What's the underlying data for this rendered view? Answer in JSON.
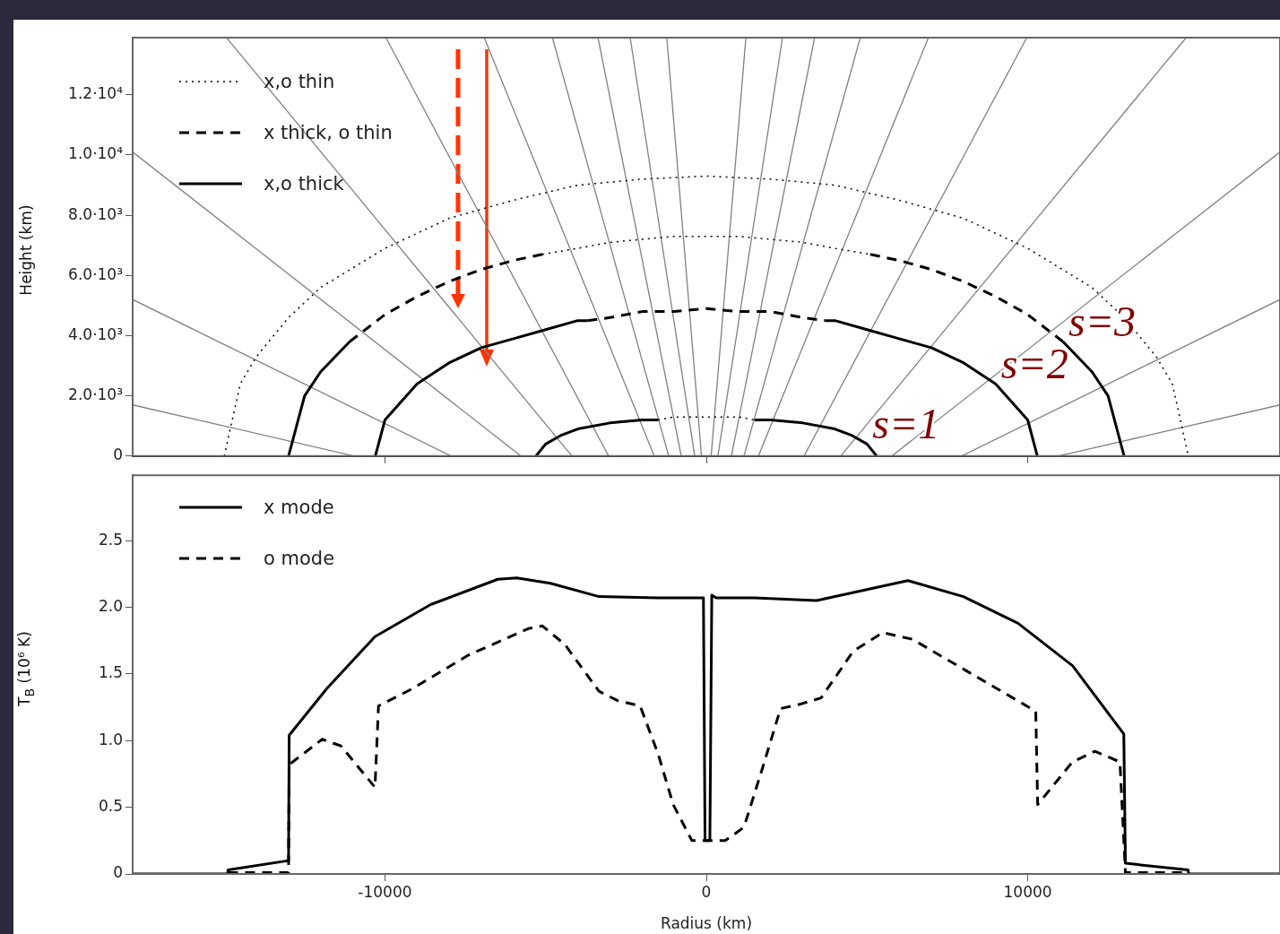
{
  "chart_data": [
    {
      "type": "line",
      "ylabel": "Height (km)",
      "xlim": [
        -17850,
        17850
      ],
      "ylim": [
        0,
        13900
      ],
      "xticks": [
        -10000,
        0,
        10000
      ],
      "yticks": [
        0,
        {
          "value": 2000,
          "label": "2.0·10³"
        },
        {
          "value": 4000,
          "label": "4.0·10³"
        },
        {
          "value": 6000,
          "label": "6.0·10³"
        },
        {
          "value": 8000,
          "label": "8.0·10³"
        },
        {
          "value": 10000,
          "label": "1.0·10⁴"
        },
        {
          "value": 12000,
          "label": "1.2·10⁴"
        }
      ],
      "tick_labels": "y",
      "legend": "top left",
      "grid": false,
      "annotations": [
        {
          "text": "s=1",
          "x": 5000,
          "y": 400
        },
        {
          "text": "s=2",
          "x": 9000,
          "y": 2400
        },
        {
          "text": "s=3",
          "x": 11100,
          "y": 3800
        }
      ],
      "series": [
        {
          "name": "x,o thin",
          "color": "#000000",
          "line_style": "dotted",
          "x": [
            -15000,
            -14500,
            -14000,
            -13000,
            -12000,
            -10000,
            -8000,
            -6000,
            -4000,
            -2000,
            0,
            2000,
            4000,
            6000,
            8000,
            10000,
            12000,
            13000,
            14000,
            14500,
            15000
          ],
          "values": [
            0,
            2400,
            3300,
            4600,
            5600,
            6900,
            7900,
            8500,
            9000,
            9200,
            9300,
            9200,
            9000,
            8500,
            7900,
            6900,
            5600,
            4600,
            3300,
            2400,
            0
          ]
        },
        {
          "color": "#000000",
          "line_style": "dotted",
          "x": [
            -5100,
            -4000,
            -3000,
            -2000,
            -1000,
            0,
            1000,
            2000,
            3000,
            4000,
            5100
          ],
          "values": [
            6700,
            6900,
            7100,
            7200,
            7300,
            7300,
            7300,
            7200,
            7100,
            6900,
            6700
          ]
        },
        {
          "color": "#000000",
          "line_style": "dotted",
          "x": [
            -1500,
            -1000,
            0,
            1000,
            1500
          ],
          "values": [
            1200,
            1300,
            1300,
            1300,
            1200
          ]
        },
        {
          "name": "x thick, o thin",
          "color": "#000000",
          "line_style": "dashed",
          "x": [
            -11100,
            -10000,
            -9000,
            -8000,
            -7000,
            -6000,
            -5100
          ],
          "values": [
            3800,
            4700,
            5300,
            5800,
            6200,
            6500,
            6700
          ]
        },
        {
          "color": "#000000",
          "line_style": "dashed",
          "x": [
            5100,
            6000,
            7000,
            8000,
            9000,
            10000,
            11100
          ],
          "values": [
            6700,
            6500,
            6200,
            5800,
            5300,
            4700,
            3800
          ]
        },
        {
          "color": "#000000",
          "line_style": "dashed",
          "x": [
            -3700,
            -3000,
            -2000,
            -1000,
            0,
            1000,
            2000,
            3000,
            3700
          ],
          "values": [
            4500,
            4600,
            4800,
            4800,
            4900,
            4800,
            4800,
            4600,
            4500
          ]
        },
        {
          "name": "x,o thick",
          "color": "#000000",
          "line_style": "solid",
          "x": [
            -13000,
            -12500,
            -12000,
            -11100
          ],
          "values": [
            0,
            2000,
            2800,
            3800
          ]
        },
        {
          "color": "#000000",
          "line_style": "solid",
          "x": [
            11100,
            12000,
            12500,
            13000
          ],
          "values": [
            3800,
            2800,
            2000,
            0
          ]
        },
        {
          "color": "#000000",
          "line_style": "solid",
          "x": [
            -10300,
            -10000,
            -9000,
            -8000,
            -7000,
            -6000,
            -5000,
            -4000,
            -3700
          ],
          "values": [
            0,
            1200,
            2400,
            3100,
            3600,
            3900,
            4200,
            4500,
            4500
          ]
        },
        {
          "color": "#000000",
          "line_style": "solid",
          "x": [
            3700,
            4000,
            5000,
            6000,
            7000,
            8000,
            9000,
            10000,
            10300
          ],
          "values": [
            4500,
            4500,
            4200,
            3900,
            3600,
            3100,
            2400,
            1200,
            0
          ]
        },
        {
          "color": "#000000",
          "line_style": "solid",
          "x": [
            -5300,
            -5000,
            -4500,
            -4000,
            -3000,
            -2000,
            -1500
          ],
          "values": [
            0,
            400,
            700,
            900,
            1100,
            1200,
            1200
          ]
        },
        {
          "color": "#000000",
          "line_style": "solid",
          "x": [
            1500,
            2000,
            3000,
            4000,
            4500,
            5000,
            5300
          ],
          "values": [
            1200,
            1200,
            1100,
            900,
            700,
            400,
            0
          ]
        },
        {
          "color": "#808080",
          "line_style": "solid",
          "x": [
            -14930,
            -4180
          ],
          "values": [
            13900,
            0
          ]
        },
        {
          "color": "#808080",
          "line_style": "solid",
          "x": [
            -9970,
            -3040
          ],
          "values": [
            13900,
            0
          ]
        },
        {
          "color": "#808080",
          "line_style": "solid",
          "x": [
            -6910,
            -1620
          ],
          "values": [
            13900,
            0
          ]
        },
        {
          "color": "#808080",
          "line_style": "solid",
          "x": [
            -4790,
            -1170
          ],
          "values": [
            13900,
            0
          ]
        },
        {
          "color": "#808080",
          "line_style": "solid",
          "x": [
            -3370,
            -780
          ],
          "values": [
            13900,
            0
          ]
        },
        {
          "color": "#808080",
          "line_style": "solid",
          "x": [
            -2370,
            -360
          ],
          "values": [
            13900,
            0
          ]
        },
        {
          "color": "#808080",
          "line_style": "solid",
          "x": [
            -1230,
            -150
          ],
          "values": [
            13900,
            0
          ]
        },
        {
          "color": "#808080",
          "line_style": "solid",
          "x": [
            1230,
            150
          ],
          "values": [
            13900,
            0
          ]
        },
        {
          "color": "#808080",
          "line_style": "solid",
          "x": [
            2370,
            360
          ],
          "values": [
            13900,
            0
          ]
        },
        {
          "color": "#808080",
          "line_style": "solid",
          "x": [
            3370,
            780
          ],
          "values": [
            13900,
            0
          ]
        },
        {
          "color": "#808080",
          "line_style": "solid",
          "x": [
            4790,
            1170
          ],
          "values": [
            13900,
            0
          ]
        },
        {
          "color": "#808080",
          "line_style": "solid",
          "x": [
            6910,
            1620
          ],
          "values": [
            13900,
            0
          ]
        },
        {
          "color": "#808080",
          "line_style": "solid",
          "x": [
            9970,
            3040
          ],
          "values": [
            13900,
            0
          ]
        },
        {
          "color": "#808080",
          "line_style": "solid",
          "x": [
            14930,
            4180
          ],
          "values": [
            13900,
            0
          ]
        },
        {
          "color": "#808080",
          "line_style": "solid",
          "x": [
            -17850,
            -5770
          ],
          "values": [
            10100,
            0
          ]
        },
        {
          "color": "#808080",
          "line_style": "solid",
          "x": [
            -17850,
            -7940
          ],
          "values": [
            5200,
            0
          ]
        },
        {
          "color": "#808080",
          "line_style": "solid",
          "x": [
            -17850,
            -10950
          ],
          "values": [
            1700,
            0
          ]
        },
        {
          "color": "#808080",
          "line_style": "solid",
          "x": [
            17850,
            5770
          ],
          "values": [
            10100,
            0
          ]
        },
        {
          "color": "#808080",
          "line_style": "solid",
          "x": [
            17850,
            7940
          ],
          "values": [
            5200,
            0
          ]
        },
        {
          "color": "#808080",
          "line_style": "solid",
          "x": [
            17850,
            10950
          ],
          "values": [
            1700,
            0
          ]
        }
      ]
    },
    {
      "type": "line",
      "xlabel": "Radius (km)",
      "ylabel": "T$_{B}$ (10⁶ K)",
      "xlim": [
        -17850,
        17850
      ],
      "ylim": [
        0,
        2.99
      ],
      "xticks": [
        -10000,
        0,
        10000
      ],
      "yticks": [
        0,
        0.5,
        {
          "value": 1,
          "label": "1.0"
        },
        1.5,
        {
          "value": 2,
          "label": "2.0"
        },
        2.5
      ],
      "legend": "top left",
      "grid": false,
      "series": [
        {
          "name": "x mode",
          "color": "#000000",
          "line_style": "solid",
          "x": [
            -17850,
            -14900,
            -14880,
            -13000,
            -12980,
            -11810,
            -10310,
            -8580,
            -6490,
            -5900,
            -4850,
            -3340,
            -1500,
            -90,
            -40,
            110,
            170,
            310,
            1500,
            3430,
            6270,
            8000,
            9700,
            11400,
            12990,
            13040,
            14990,
            15010,
            17850
          ],
          "values": [
            0,
            0,
            0.03,
            0.1,
            1.04,
            1.39,
            1.78,
            2.02,
            2.21,
            2.22,
            2.18,
            2.08,
            2.07,
            2.07,
            0.25,
            0.25,
            2.09,
            2.07,
            2.07,
            2.05,
            2.2,
            2.08,
            1.88,
            1.56,
            1.05,
            0.08,
            0.03,
            0,
            0
          ]
        },
        {
          "name": "o mode",
          "color": "#000000",
          "line_style": "dashed",
          "x": [
            -14880,
            -13000,
            -12980,
            -11950,
            -11370,
            -10310,
            -10200,
            -9140,
            -7410,
            -5540,
            -5100,
            -4400,
            -3340,
            -2760,
            -2060,
            -1500,
            -1030,
            -450,
            0,
            590,
            1170,
            1730,
            2310,
            2870,
            3570,
            4570,
            5490,
            6410,
            10250,
            10310,
            11390,
            12090,
            12870,
            13040,
            14930
          ],
          "values": [
            0.01,
            0.01,
            0.82,
            1.01,
            0.96,
            0.65,
            1.26,
            1.39,
            1.64,
            1.84,
            1.86,
            1.72,
            1.37,
            1.3,
            1.26,
            0.9,
            0.52,
            0.25,
            0.25,
            0.25,
            0.35,
            0.78,
            1.24,
            1.27,
            1.32,
            1.67,
            1.81,
            1.76,
            1.22,
            0.52,
            0.84,
            0.92,
            0.84,
            0.01,
            0.01
          ]
        }
      ]
    }
  ]
}
